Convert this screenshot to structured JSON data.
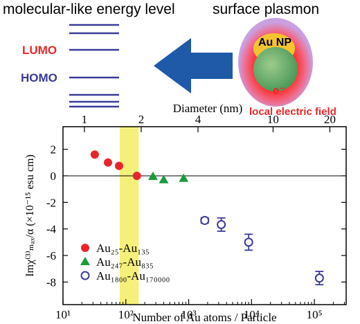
{
  "schematic": {
    "left_title": "molecular-like energy level",
    "right_title": "surface plasmon",
    "lumo": "LUMO",
    "homo": "HOMO",
    "particle_label": "Au NP",
    "electron": "e⁻",
    "field_label": "local electric field"
  },
  "chart_data": {
    "type": "scatter",
    "x_label": "Number of Au atoms / Particle",
    "x2_label": "Diameter (nm)",
    "y_label": "Imχ⁽³⁾ₘₐₓ/α  (×10⁻¹⁵ esu cm)",
    "xlim": [
      10,
      320000
    ],
    "log_x": true,
    "xticks": [
      {
        "value": 10,
        "label": "10¹"
      },
      {
        "value": 100,
        "label": "10²"
      },
      {
        "value": 1000,
        "label": "10³"
      },
      {
        "value": 10000,
        "label": "10⁴"
      },
      {
        "value": 100000,
        "label": "10⁵"
      }
    ],
    "x2lim": [
      0.77,
      24.4
    ],
    "log_x2": true,
    "x2ticks": [
      1,
      2,
      4,
      10,
      20
    ],
    "ylim": [
      -9.7,
      3.7
    ],
    "yticks": [
      2,
      0,
      -2,
      -4,
      -6,
      -8
    ],
    "zero_line": true,
    "highlight_band": [
      80,
      160
    ],
    "highlight_color": "#f5f07a",
    "legend": "lower left",
    "series": [
      {
        "name": "Au₂₅-Au₁₃₅",
        "color": "#e8262a",
        "marker": "circle-filled",
        "x": [
          32,
          52,
          78,
          150
        ],
        "values": [
          1.6,
          1.0,
          0.75,
          0
        ]
      },
      {
        "name": "Au₂₄₇-Au₈₃₅",
        "color": "#1a9a3c",
        "marker": "triangle",
        "x": [
          270,
          400,
          830
        ],
        "values": [
          -0.05,
          -0.3,
          -0.2
        ]
      },
      {
        "name": "Au₁₈₀₀-Au₁₇₀₀₀₀",
        "color": "#3a3a9a",
        "marker": "circle-open",
        "x": [
          1800,
          3300,
          9000,
          120000
        ],
        "values": [
          -3.36,
          -3.67,
          -5.0,
          -7.7
        ],
        "errors": [
          0.2,
          0.5,
          0.6,
          0.5
        ]
      }
    ]
  }
}
